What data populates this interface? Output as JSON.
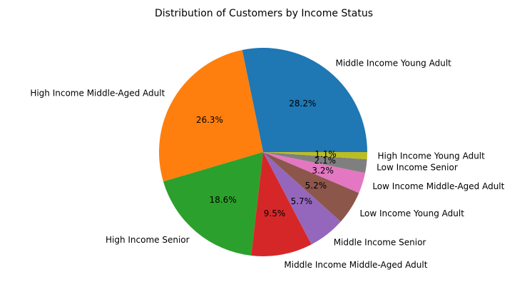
{
  "chart_data": {
    "type": "pie",
    "title": "Distribution of Customers by Income Status",
    "categories": [
      "Middle Income Young Adult",
      "High Income Middle-Aged Adult",
      "High Income Senior",
      "Middle Income Middle-Aged Adult",
      "Middle Income Senior",
      "Low Income Young Adult",
      "Low Income Middle-Aged Adult",
      "Low Income Senior",
      "High Income Young Adult"
    ],
    "values": [
      28.2,
      26.3,
      18.6,
      9.5,
      5.7,
      5.2,
      3.2,
      2.1,
      1.1
    ],
    "labels_pct": [
      "28.2%",
      "26.3%",
      "18.6%",
      "9.5%",
      "5.7%",
      "5.2%",
      "3.2%",
      "2.1%",
      "1.1%"
    ],
    "colors": [
      "#1f77b4",
      "#ff7f0e",
      "#2ca02c",
      "#d62728",
      "#9467bd",
      "#8c564b",
      "#e377c2",
      "#7f7f7f",
      "#bcbd22"
    ],
    "start_angle": 0,
    "direction": "counterclockwise"
  }
}
